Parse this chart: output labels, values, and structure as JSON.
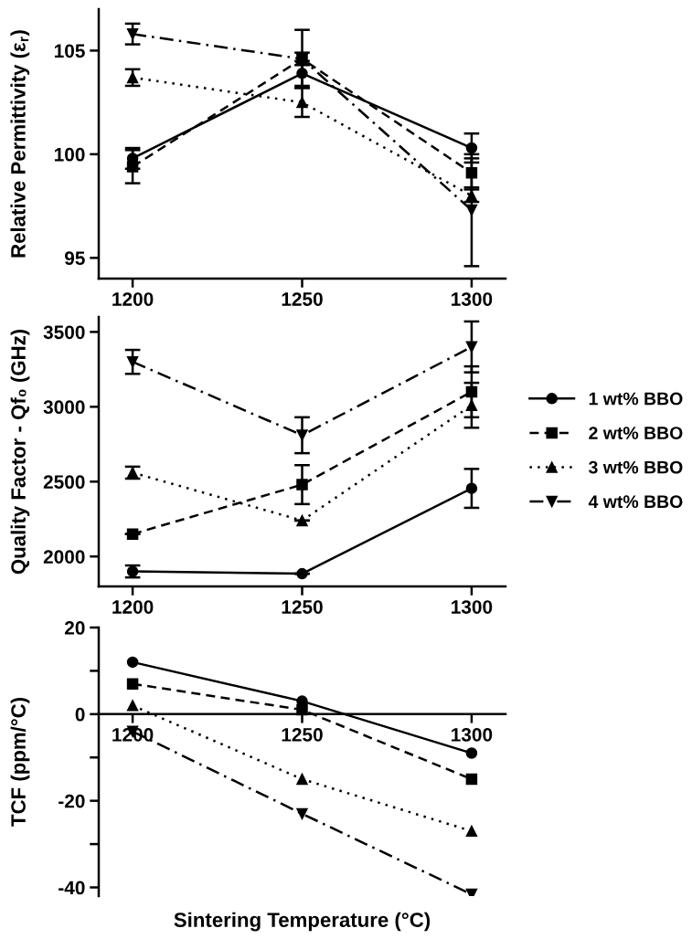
{
  "chart_data": [
    {
      "type": "line",
      "ylabel": "Relative Permittivity (ε$_{r}$)",
      "x": [
        1200,
        1250,
        1300
      ],
      "xlim": [
        1190,
        1310
      ],
      "xticks": [
        1200,
        1250,
        1300
      ],
      "ylim": [
        94,
        107
      ],
      "yticks": [
        95,
        100,
        105
      ],
      "grid": false,
      "legend": false,
      "series": [
        {
          "color": "#000000",
          "marker": "circle",
          "line_style": "solid",
          "values": [
            99.8,
            103.9,
            100.3
          ],
          "errors": [
            0.5,
            0.6,
            0.7
          ]
        },
        {
          "color": "#000000",
          "marker": "square",
          "line_style": "dashed",
          "values": [
            99.4,
            104.6,
            99.1
          ],
          "errors": [
            0.8,
            1.4,
            0.7
          ]
        },
        {
          "color": "#000000",
          "marker": "triangle",
          "line_style": "dotted",
          "values": [
            103.7,
            102.5,
            98.0
          ],
          "errors": [
            0.4,
            0.7,
            0.3
          ]
        },
        {
          "color": "#000000",
          "marker": "triangle_down",
          "line_style": "dashdot",
          "values": [
            105.8,
            104.6,
            97.3
          ],
          "errors": [
            0.5,
            0.3,
            2.7
          ]
        }
      ]
    },
    {
      "type": "line",
      "ylabel": "Quality Factor - Qf₀ (GHz)",
      "x": [
        1200,
        1250,
        1300
      ],
      "xlim": [
        1190,
        1310
      ],
      "xticks": [
        1200,
        1250,
        1300
      ],
      "ylim": [
        1800,
        3600
      ],
      "yticks": [
        2000,
        2500,
        3000,
        3500
      ],
      "grid": false,
      "legend": "right",
      "series": [
        {
          "name": "1 wt% BBO",
          "color": "#000000",
          "marker": "circle",
          "line_style": "solid",
          "values": [
            1900,
            1885,
            2455
          ],
          "errors": [
            40,
            0,
            130
          ]
        },
        {
          "name": "2 wt% BBO",
          "color": "#000000",
          "marker": "square",
          "line_style": "dashed",
          "values": [
            2150,
            2480,
            3100
          ],
          "errors": [
            0,
            130,
            170
          ]
        },
        {
          "name": "3 wt% BBO",
          "color": "#000000",
          "marker": "triangle",
          "line_style": "dotted",
          "values": [
            2560,
            2240,
            3010
          ],
          "errors": [
            40,
            0,
            150
          ]
        },
        {
          "name": "4 wt% BBO",
          "color": "#000000",
          "marker": "triangle_down",
          "line_style": "dashdot",
          "values": [
            3300,
            2810,
            3400
          ],
          "errors": [
            80,
            120,
            170
          ]
        }
      ]
    },
    {
      "type": "line",
      "ylabel": "TCF (ppm/°C)",
      "xlabel": "Sintering Temperature (°C)",
      "x": [
        1200,
        1250,
        1300
      ],
      "xlim": [
        1190,
        1310
      ],
      "xticks": [
        1200,
        1250,
        1300
      ],
      "ylim": [
        -42,
        20
      ],
      "yticks": [
        20,
        {
          "value": 10,
          "label": null
        },
        0,
        {
          "value": -10,
          "label": null
        },
        -20,
        {
          "value": -30,
          "label": null
        },
        -40
      ],
      "grid": false,
      "legend": false,
      "series": [
        {
          "color": "#000000",
          "marker": "circle",
          "line_style": "solid",
          "values": [
            12,
            3,
            -9
          ]
        },
        {
          "color": "#000000",
          "marker": "square",
          "line_style": "dashed",
          "values": [
            7,
            1,
            -15
          ]
        },
        {
          "color": "#000000",
          "marker": "triangle",
          "line_style": "dotted",
          "values": [
            2,
            -15,
            -27
          ]
        },
        {
          "color": "#000000",
          "marker": "triangle_down",
          "line_style": "dashdot",
          "values": [
            -4,
            -23,
            -41.6
          ]
        }
      ]
    }
  ]
}
